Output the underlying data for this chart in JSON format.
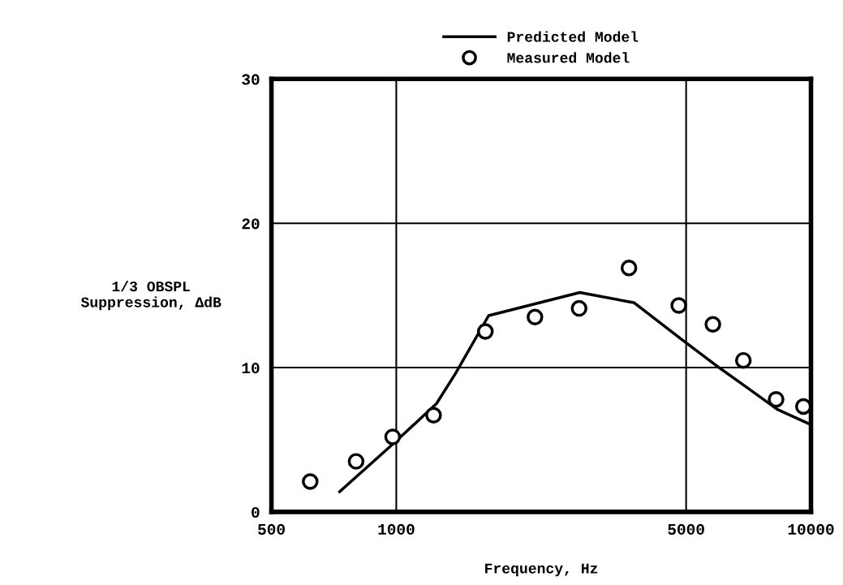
{
  "chart_data": {
    "type": "scatter",
    "xlabel": "Frequency, Hz",
    "ylabel": "1/3 OBSPL\nSuppression, ΔdB",
    "log": "x",
    "xlim": [
      500,
      10000
    ],
    "xticks": [
      500,
      1000,
      5000,
      10000
    ],
    "ylim": [
      0,
      30
    ],
    "yticks": [
      0,
      10,
      20,
      30
    ],
    "grid": true,
    "legend": "top",
    "series": [
      {
        "name": "Predicted Model",
        "type": "line",
        "color": "#000000",
        "marker": "none",
        "line_style": "solid",
        "x": [
          730,
          990,
          1250,
          1390,
          1670,
          2770,
          3740,
          4900,
          5870,
          6870,
          8300,
          9900
        ],
        "values": [
          1.4,
          4.8,
          7.5,
          9.6,
          13.6,
          15.2,
          14.5,
          11.9,
          10.2,
          8.8,
          7.1,
          6.1
        ]
      },
      {
        "name": "Measured Model",
        "color": "#000000",
        "marker": "circle",
        "x": [
          620,
          800,
          980,
          1230,
          1640,
          2160,
          2760,
          3640,
          4800,
          5800,
          6870,
          8240,
          9590
        ],
        "values": [
          2.1,
          3.5,
          5.2,
          6.7,
          12.5,
          13.5,
          14.1,
          16.9,
          14.3,
          13.0,
          10.5,
          7.8,
          7.3
        ]
      }
    ]
  }
}
